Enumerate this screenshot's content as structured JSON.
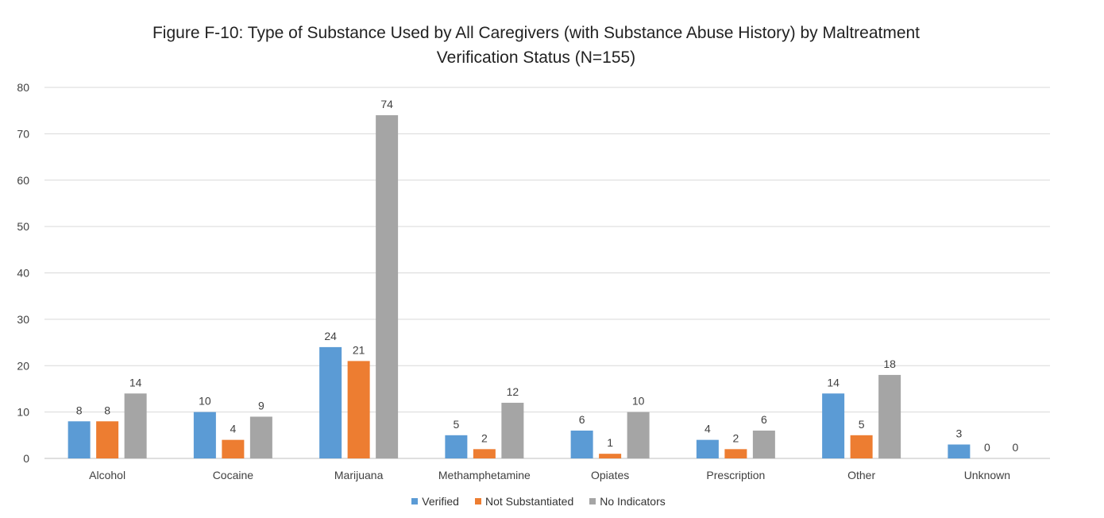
{
  "chart_data": {
    "type": "bar",
    "title_lines": [
      "Figure F-10: Type of Substance Used by All Caregivers (with Substance Abuse History) by Maltreatment",
      "Verification Status (N=155)"
    ],
    "xlabel": "",
    "ylabel": "",
    "ylim": [
      0,
      80
    ],
    "yticks": [
      0,
      10,
      20,
      30,
      40,
      50,
      60,
      70,
      80
    ],
    "grid": true,
    "legend_position": "bottom",
    "categories": [
      "Alcohol",
      "Cocaine",
      "Marijuana",
      "Methamphetamine",
      "Opiates",
      "Prescription",
      "Other",
      "Unknown"
    ],
    "series": [
      {
        "name": "Verified",
        "color": "#5b9bd5",
        "values": [
          8,
          10,
          24,
          5,
          6,
          4,
          14,
          3
        ]
      },
      {
        "name": "Not Substantiated",
        "color": "#ed7d31",
        "values": [
          8,
          4,
          21,
          2,
          1,
          2,
          5,
          0
        ]
      },
      {
        "name": "No Indicators",
        "color": "#a5a5a5",
        "values": [
          14,
          9,
          74,
          12,
          10,
          6,
          18,
          0
        ]
      }
    ]
  }
}
